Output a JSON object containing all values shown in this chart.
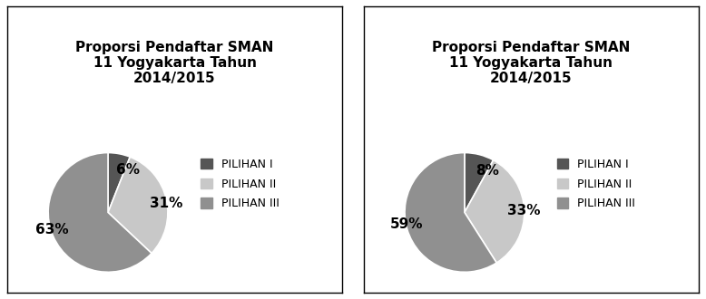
{
  "charts": [
    {
      "title": "Proporsi Pendaftar SMAN\n11 Yogyakarta Tahun\n2014/2015",
      "values": [
        6,
        31,
        63
      ],
      "labels": [
        "6%",
        "31%",
        "63%"
      ],
      "legend_labels": [
        "PILIHAN I",
        "PILIHAN II",
        "PILIHAN III"
      ],
      "colors": [
        "#555555",
        "#c8c8c8",
        "#909090"
      ],
      "startangle": 90
    },
    {
      "title": "Proporsi Pendaftar SMAN\n11 Yogyakarta Tahun\n2014/2015",
      "values": [
        8,
        33,
        59
      ],
      "labels": [
        "8%",
        "33%",
        "59%"
      ],
      "legend_labels": [
        "PILIHAN I",
        "PILIHAN II",
        "PILIHAN III"
      ],
      "colors": [
        "#555555",
        "#c8c8c8",
        "#909090"
      ],
      "startangle": 90
    }
  ],
  "title_fontsize": 11,
  "label_fontsize": 11,
  "legend_fontsize": 9,
  "bg_color": "#ffffff",
  "border_color": "#000000",
  "fig_width": 7.78,
  "fig_height": 3.3
}
